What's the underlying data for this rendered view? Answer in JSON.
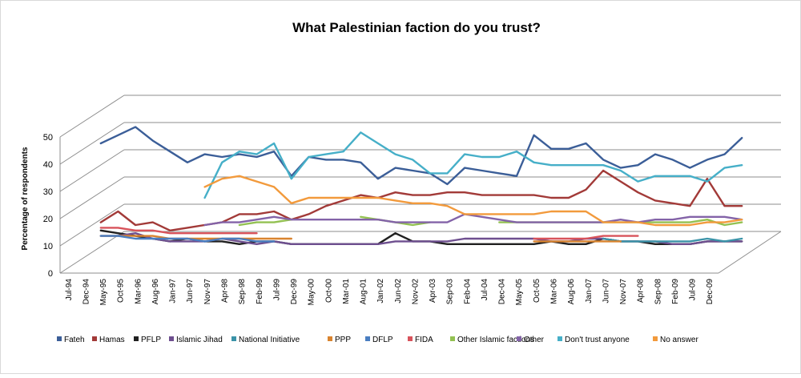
{
  "chart_data": {
    "type": "line",
    "title": "What Palestinian faction do you trust?",
    "ylabel": "Percentage of respondents",
    "xlabel": "",
    "ylim": [
      0,
      50
    ],
    "yticks": [
      "0",
      "10",
      "20",
      "30",
      "40",
      "50"
    ],
    "grid": true,
    "legend_position": "bottom",
    "x": [
      "Jul-94",
      "Dec-94",
      "May-95",
      "Oct-95",
      "Mar-96",
      "Aug-96",
      "Jan-97",
      "Jun-97",
      "Nov-97",
      "Apr-98",
      "Sep-98",
      "Feb-99",
      "Jul-99",
      "Dec-99",
      "May-00",
      "Oct-00",
      "Mar-01",
      "Aug-01",
      "Jan-02",
      "Jun-02",
      "Nov-02",
      "Apr-03",
      "Sep-03",
      "Feb-04",
      "Jul-04",
      "Dec-04",
      "May-05",
      "Oct-05",
      "Mar-06",
      "Aug-06",
      "Jan-07",
      "Jun-07",
      "Nov-07",
      "Apr-08",
      "Sep-08",
      "Feb-09",
      "Jul-09",
      "Dec-09"
    ],
    "series": [
      {
        "name": "Fateh",
        "color": "#3b5e98",
        "values": [
          40,
          43,
          46,
          41,
          37,
          33,
          36,
          35,
          36,
          35,
          37,
          28,
          35,
          34,
          34,
          33,
          27,
          31,
          30,
          29,
          25,
          31,
          30,
          29,
          28,
          43,
          38,
          38,
          40,
          34,
          31,
          32,
          36,
          34,
          31,
          34,
          36,
          42
        ]
      },
      {
        "name": "Hamas",
        "color": "#a23a38",
        "values": [
          11,
          15,
          10,
          11,
          8,
          9,
          10,
          11,
          14,
          14,
          15,
          12,
          14,
          17,
          19,
          21,
          20,
          22,
          21,
          21,
          22,
          22,
          21,
          21,
          21,
          21,
          20,
          20,
          23,
          30,
          26,
          22,
          19,
          18,
          17,
          27,
          17,
          17
        ]
      },
      {
        "name": "PFLP",
        "color": "#202020",
        "values": [
          8,
          7,
          6,
          5,
          4,
          5,
          4,
          4,
          3,
          4,
          4,
          3,
          3,
          3,
          3,
          3,
          3,
          7,
          4,
          4,
          3,
          3,
          3,
          3,
          3,
          3,
          4,
          3,
          3,
          5,
          4,
          4,
          3,
          3,
          3,
          4,
          4,
          4
        ]
      },
      {
        "name": "Islamic Jihad",
        "color": "#6e4f8f",
        "values": [
          6,
          6,
          7,
          5,
          4,
          4,
          4,
          5,
          4,
          3,
          4,
          3,
          3,
          3,
          3,
          3,
          3,
          4,
          4,
          4,
          4,
          5,
          5,
          5,
          5,
          5,
          4,
          4,
          5,
          5,
          4,
          4,
          4,
          3,
          3,
          4,
          4,
          4
        ]
      },
      {
        "name": "National Initiative",
        "color": "#3b93a8",
        "values": [
          null,
          null,
          null,
          null,
          null,
          null,
          null,
          null,
          null,
          null,
          null,
          null,
          null,
          null,
          null,
          null,
          null,
          null,
          null,
          null,
          null,
          null,
          null,
          null,
          null,
          null,
          null,
          null,
          null,
          5,
          4,
          4,
          4,
          4,
          4,
          5,
          4,
          5
        ]
      },
      {
        "name": "PPP",
        "color": "#d9842f",
        "values": [
          6,
          6,
          6,
          6,
          5,
          5,
          5,
          5,
          5,
          5,
          5,
          5,
          null,
          null,
          null,
          null,
          null,
          null,
          null,
          null,
          null,
          null,
          null,
          null,
          null,
          4,
          4,
          4,
          4,
          4,
          4,
          null,
          null,
          null,
          null,
          null,
          null,
          null
        ]
      },
      {
        "name": "DFLP",
        "color": "#4a7ec1",
        "values": [
          6,
          6,
          5,
          5,
          5,
          5,
          4,
          5,
          5,
          4,
          4,
          null,
          null,
          null,
          null,
          null,
          null,
          null,
          null,
          null,
          null,
          null,
          null,
          null,
          null,
          null,
          null,
          null,
          null,
          null,
          null,
          null,
          null,
          null,
          null,
          null,
          null,
          null
        ]
      },
      {
        "name": "FIDA",
        "color": "#d8535b",
        "values": [
          9,
          9,
          8,
          8,
          7,
          7,
          7,
          7,
          7,
          7,
          null,
          null,
          null,
          null,
          null,
          null,
          null,
          null,
          null,
          null,
          null,
          null,
          null,
          null,
          null,
          5,
          5,
          5,
          5,
          6,
          6,
          6,
          null,
          null,
          null,
          null,
          null,
          null
        ]
      },
      {
        "name": "Other Islamic factions",
        "color": "#93c152",
        "values": [
          null,
          null,
          null,
          null,
          null,
          null,
          null,
          null,
          10,
          11,
          11,
          12,
          null,
          null,
          null,
          13,
          12,
          11,
          10,
          11,
          null,
          null,
          null,
          11,
          11,
          11,
          11,
          11,
          11,
          11,
          11,
          11,
          11,
          11,
          11,
          12,
          10,
          11
        ]
      },
      {
        "name": "Other",
        "color": "#8363a8",
        "values": [
          null,
          null,
          null,
          null,
          null,
          null,
          10,
          11,
          11,
          12,
          13,
          12,
          12,
          12,
          12,
          12,
          12,
          11,
          11,
          11,
          11,
          14,
          13,
          12,
          11,
          11,
          11,
          11,
          11,
          11,
          12,
          11,
          12,
          12,
          13,
          13,
          13,
          12
        ]
      },
      {
        "name": "Don't trust anyone",
        "color": "#46afc8",
        "values": [
          null,
          null,
          null,
          null,
          null,
          null,
          20,
          33,
          37,
          36,
          40,
          27,
          35,
          36,
          37,
          44,
          40,
          36,
          34,
          29,
          29,
          36,
          35,
          35,
          37,
          33,
          32,
          32,
          32,
          32,
          30,
          26,
          28,
          28,
          28,
          26,
          31,
          32
        ]
      },
      {
        "name": "No answer",
        "color": "#f29a3c",
        "values": [
          null,
          null,
          null,
          null,
          null,
          null,
          24,
          27,
          28,
          26,
          24,
          18,
          20,
          20,
          20,
          20,
          20,
          19,
          18,
          18,
          17,
          14,
          14,
          14,
          14,
          14,
          15,
          15,
          15,
          11,
          11,
          11,
          10,
          10,
          10,
          11,
          11,
          12
        ]
      }
    ]
  }
}
